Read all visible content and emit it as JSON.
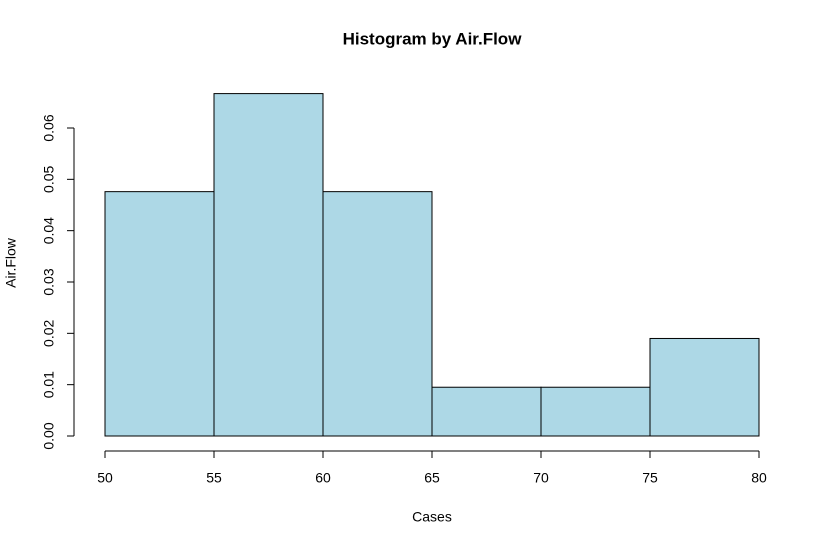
{
  "chart_data": {
    "type": "histogram",
    "title": "Histogram by Air.Flow",
    "x_label": "Cases",
    "y_label": "Air.Flow",
    "bins": [
      50,
      55,
      60,
      65,
      70,
      75,
      80
    ],
    "values": [
      0.0476,
      0.0667,
      0.0476,
      0.0095,
      0.0095,
      0.019
    ],
    "color": "#add8e6",
    "xlim": [
      50,
      80
    ],
    "xticks": [
      50,
      55,
      60,
      65,
      70,
      75,
      80
    ],
    "ylim": [
      0,
      0.0667
    ],
    "yticks": [
      {
        "value": 0,
        "label": "0.00"
      },
      {
        "value": 0.01,
        "label": "0.01"
      },
      {
        "value": 0.02,
        "label": "0.02"
      },
      {
        "value": 0.03,
        "label": "0.03"
      },
      {
        "value": 0.04,
        "label": "0.04"
      },
      {
        "value": 0.05,
        "label": "0.05"
      },
      {
        "value": 0.06,
        "label": "0.06"
      }
    ],
    "grid": false
  }
}
